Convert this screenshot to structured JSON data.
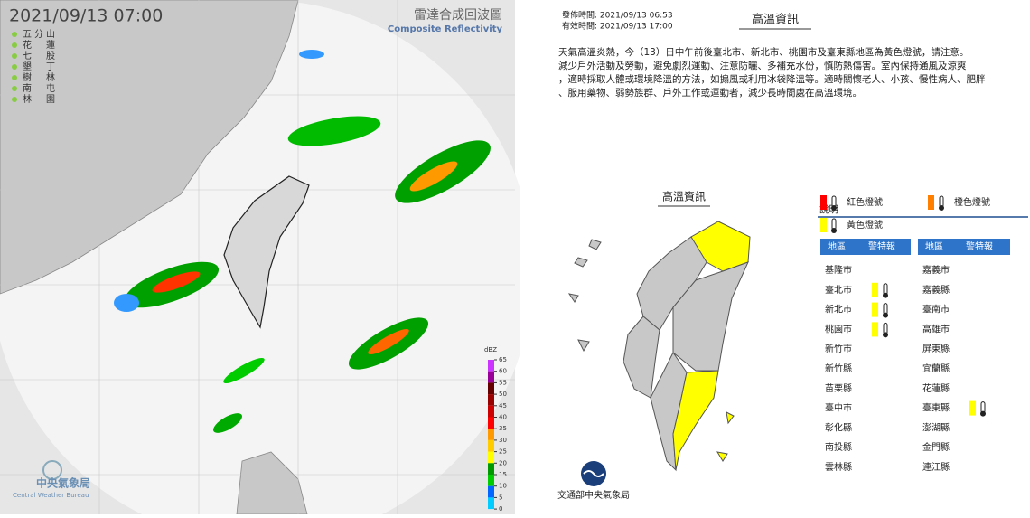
{
  "radar": {
    "timestamp": "2021/09/13  07:00",
    "title": "雷達合成回波圖",
    "subtitle": "Composite Reflectivity",
    "stations": [
      "五分山",
      "花蓮",
      "七股",
      "墾丁",
      "樹林",
      "南屯",
      "林園"
    ],
    "colorbar": {
      "unit": "dBZ",
      "ticks": [
        65,
        60,
        55,
        50,
        45,
        40,
        35,
        30,
        25,
        20,
        15,
        10,
        5,
        0
      ],
      "colors": [
        "#cc33ff",
        "#990099",
        "#660000",
        "#990000",
        "#cc0000",
        "#ff0000",
        "#ff9900",
        "#ffcc00",
        "#ffff00",
        "#009900",
        "#00cc00",
        "#0066ff",
        "#00ccff"
      ]
    },
    "agency": "中央氣象局",
    "agency_en": "Central Weather Bureau"
  },
  "warning": {
    "issued": "發佈時間: 2021/09/13 06:53",
    "valid": "有效時間: 2021/09/13 17:00",
    "title": "高溫資訊",
    "text": [
      "天氣高溫炎熱，今（13）日中午前後臺北市、新北市、桃園市及臺東縣地區為黃色燈號，請注意。",
      "減少戶外活動及勞動，避免劇烈運動、注意防曬、多補充水份，慎防熱傷害。室內保持通風及涼爽",
      "，適時採取人體或環境降溫的方法，如搧風或利用冰袋降溫等。適時關懷老人、小孩、慢性病人、肥胖",
      "、服用藥物、弱勢族群、戶外工作或運動者，減少長時間處在高溫環境。"
    ],
    "map_title": "高溫資訊",
    "legend_title": "說明",
    "legend": [
      {
        "label": "紅色燈號",
        "color": "#ff0000"
      },
      {
        "label": "橙色燈號",
        "color": "#ff8000"
      },
      {
        "label": "黃色燈號",
        "color": "#ffff00"
      }
    ],
    "headers": [
      "地區",
      "警特報"
    ],
    "regions": [
      [
        {
          "name": "基隆市",
          "warning": false
        },
        {
          "name": "臺北市",
          "warning": true
        },
        {
          "name": "新北市",
          "warning": true
        },
        {
          "name": "桃園市",
          "warning": true
        },
        {
          "name": "新竹市",
          "warning": false
        },
        {
          "name": "新竹縣",
          "warning": false
        },
        {
          "name": "苗栗縣",
          "warning": false
        },
        {
          "name": "臺中市",
          "warning": false
        },
        {
          "name": "彰化縣",
          "warning": false
        },
        {
          "name": "南投縣",
          "warning": false
        },
        {
          "name": "雲林縣",
          "warning": false
        }
      ],
      [
        {
          "name": "嘉義市",
          "warning": false
        },
        {
          "name": "嘉義縣",
          "warning": false
        },
        {
          "name": "臺南市",
          "warning": false
        },
        {
          "name": "高雄市",
          "warning": false
        },
        {
          "name": "屏東縣",
          "warning": false
        },
        {
          "name": "宜蘭縣",
          "warning": false
        },
        {
          "name": "花蓮縣",
          "warning": false
        },
        {
          "name": "臺東縣",
          "warning": true
        },
        {
          "name": "澎湖縣",
          "warning": false
        },
        {
          "name": "金門縣",
          "warning": false
        },
        {
          "name": "連江縣",
          "warning": false
        }
      ]
    ],
    "footer": "交通部中央氣象局"
  }
}
